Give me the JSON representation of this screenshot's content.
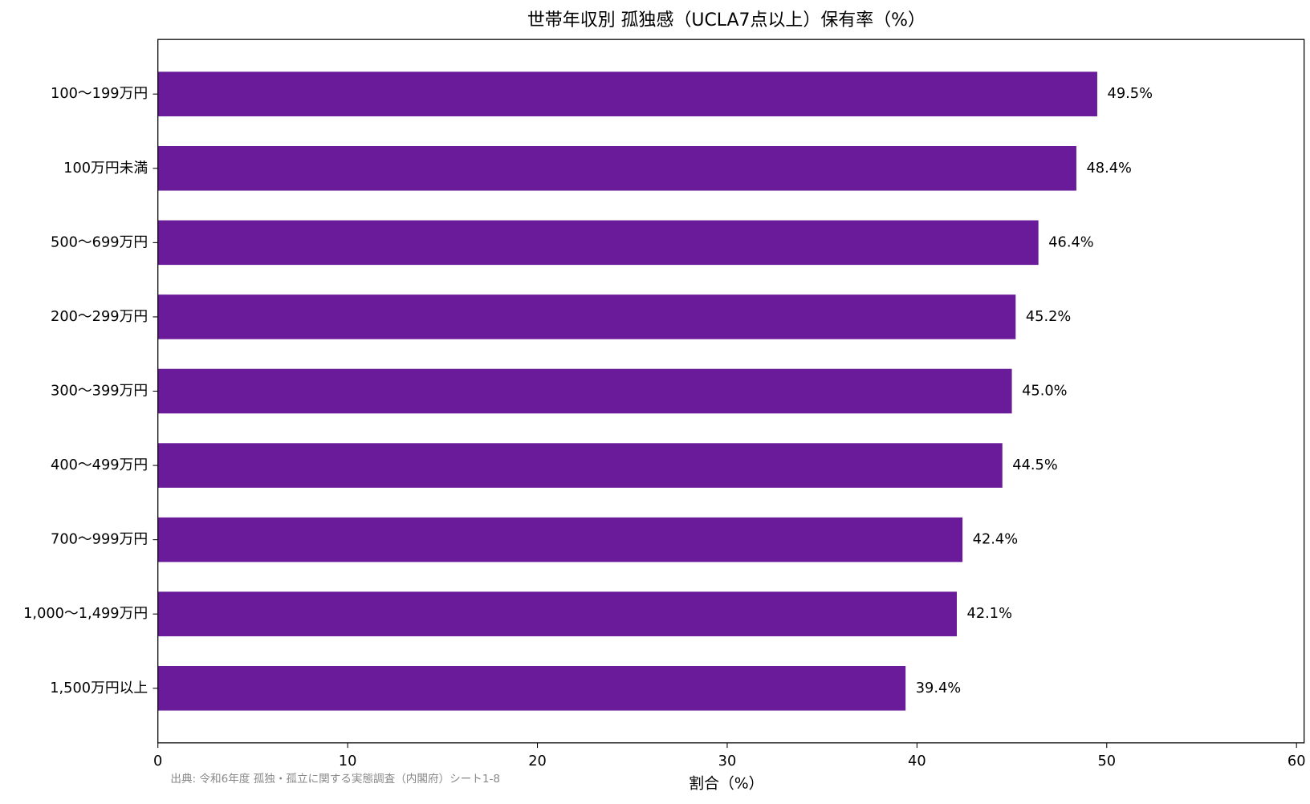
{
  "chart_data": {
    "type": "bar",
    "orientation": "horizontal",
    "title": "世帯年収別 孤独感（UCLA7点以上）保有率（%）",
    "x_label": "割合（%）",
    "source": "出典: 令和6年度 孤独・孤立に関する実態調査（内閣府）シート1-8",
    "categories": [
      "100〜199万円",
      "100万円未満",
      "500〜699万円",
      "200〜299万円",
      "300〜399万円",
      "400〜499万円",
      "700〜999万円",
      "1,000〜1,499万円",
      "1,500万円以上"
    ],
    "values": [
      49.5,
      48.4,
      46.4,
      45.2,
      45.0,
      44.5,
      42.4,
      42.1,
      39.4
    ],
    "value_labels": [
      "49.5%",
      "48.4%",
      "46.4%",
      "45.2%",
      "45.0%",
      "44.5%",
      "42.4%",
      "42.1%",
      "39.4%"
    ],
    "color": "#6a1b9a",
    "xlim": [
      0,
      60.4
    ],
    "xticks": [
      0,
      10,
      20,
      30,
      40,
      50,
      60
    ],
    "grid": false
  }
}
